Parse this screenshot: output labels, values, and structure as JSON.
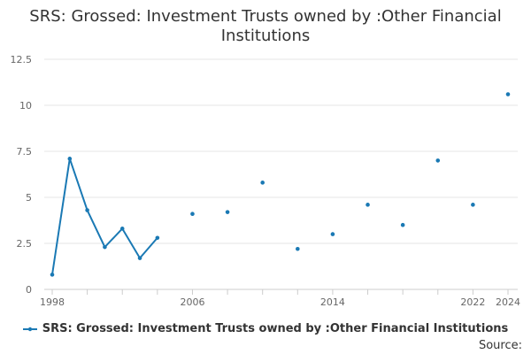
{
  "chart_data": {
    "type": "line",
    "title_lines": [
      "SRS: Grossed: Investment Trusts owned by :Other Financial",
      "Institutions"
    ],
    "source_label": "Source:",
    "color": "#1a79b4",
    "grid": true,
    "legend_position": "bottom",
    "x_ticks": [
      "1998",
      "2006",
      "2014",
      "2022",
      "2024"
    ],
    "y_ticks": [
      "0",
      "2.5",
      "5",
      "7.5",
      "10",
      "12.5"
    ],
    "xlim": [
      1998,
      2024
    ],
    "ylim": [
      0,
      12.5
    ],
    "series": [
      {
        "name": "SRS: Grossed: Investment Trusts owned by :Other Financial Institutions",
        "points": [
          {
            "x": 1998,
            "y": 0.8
          },
          {
            "x": 1999,
            "y": 7.1
          },
          {
            "x": 2000,
            "y": 4.3
          },
          {
            "x": 2001,
            "y": 2.3
          },
          {
            "x": 2002,
            "y": 3.3
          },
          {
            "x": 2003,
            "y": 1.7
          },
          {
            "x": 2004,
            "y": 2.8
          },
          {
            "x": 2006,
            "y": 4.1
          },
          {
            "x": 2008,
            "y": 4.2
          },
          {
            "x": 2010,
            "y": 5.8
          },
          {
            "x": 2012,
            "y": 2.2
          },
          {
            "x": 2014,
            "y": 3.0
          },
          {
            "x": 2016,
            "y": 4.6
          },
          {
            "x": 2018,
            "y": 3.5
          },
          {
            "x": 2020,
            "y": 7.0
          },
          {
            "x": 2022,
            "y": 4.6
          },
          {
            "x": 2024,
            "y": 10.6
          }
        ]
      }
    ]
  }
}
